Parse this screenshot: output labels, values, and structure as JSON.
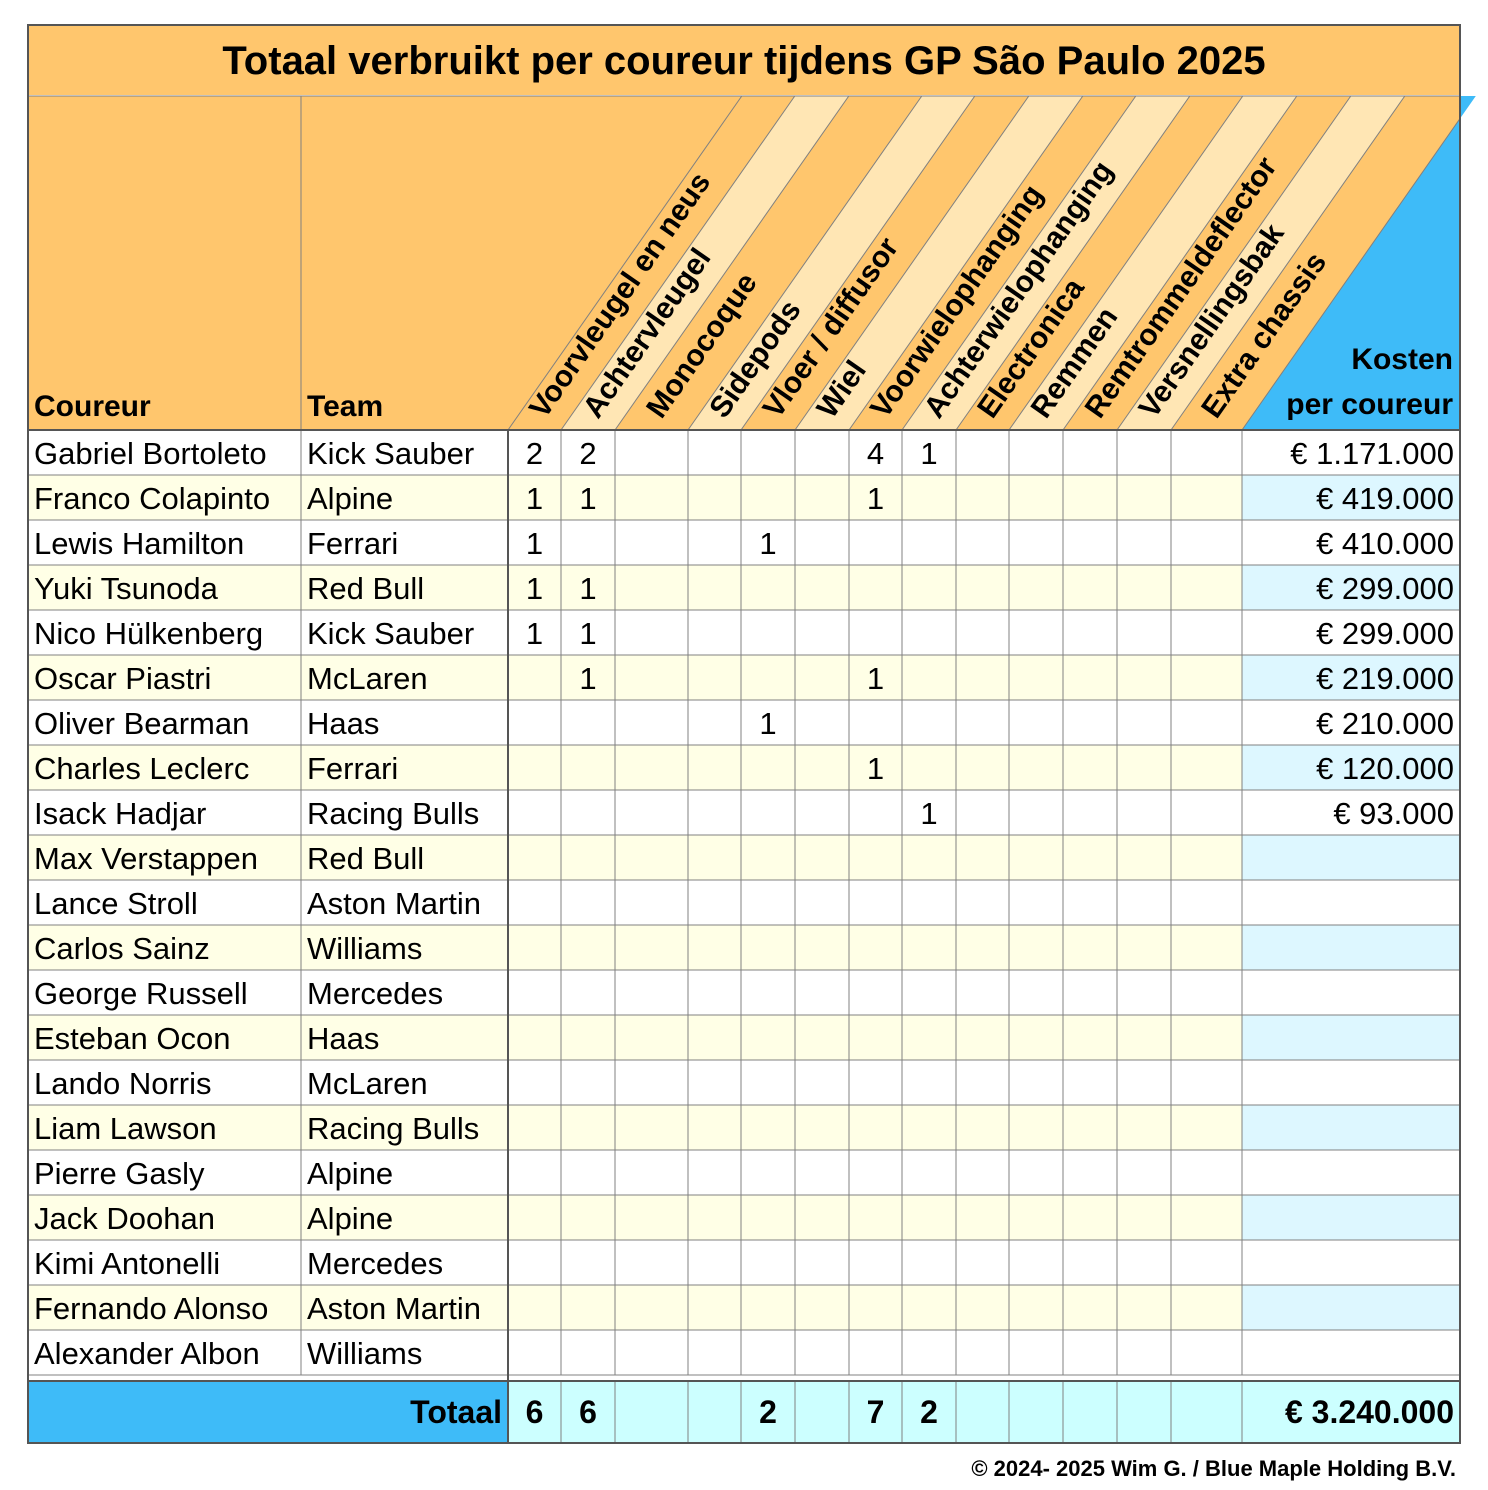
{
  "title": "Totaal verbruikt per coureur tijdens GP São Paulo 2025",
  "headers": {
    "driver": "Coureur",
    "team": "Team",
    "cost_line1": "Kosten",
    "cost_line2": "per coureur"
  },
  "components": [
    "Voorvleugel en neus",
    "Achtervleugel",
    "Monocoque",
    "Sidepods",
    "Vloer / diffusor",
    "Wiel",
    "Voorwielophanging",
    "Achterwielophanging",
    "Electronica",
    "Remmen",
    "Remtrommeldeflector",
    "Versnellingsbak",
    "Extra chassis"
  ],
  "rows": [
    {
      "driver": "Gabriel Bortoleto",
      "team": "Kick Sauber",
      "values": [
        "2",
        "2",
        "",
        "",
        "",
        "",
        "4",
        "1",
        "",
        "",
        "",
        "",
        ""
      ],
      "cost": "€ 1.171.000"
    },
    {
      "driver": "Franco Colapinto",
      "team": "Alpine",
      "values": [
        "1",
        "1",
        "",
        "",
        "",
        "",
        "1",
        "",
        "",
        "",
        "",
        "",
        ""
      ],
      "cost": "€ 419.000"
    },
    {
      "driver": "Lewis Hamilton",
      "team": "Ferrari",
      "values": [
        "1",
        "",
        "",
        "",
        "1",
        "",
        "",
        "",
        "",
        "",
        "",
        "",
        ""
      ],
      "cost": "€ 410.000"
    },
    {
      "driver": "Yuki Tsunoda",
      "team": "Red Bull",
      "values": [
        "1",
        "1",
        "",
        "",
        "",
        "",
        "",
        "",
        "",
        "",
        "",
        "",
        ""
      ],
      "cost": "€ 299.000"
    },
    {
      "driver": "Nico Hülkenberg",
      "team": "Kick Sauber",
      "values": [
        "1",
        "1",
        "",
        "",
        "",
        "",
        "",
        "",
        "",
        "",
        "",
        "",
        ""
      ],
      "cost": "€ 299.000"
    },
    {
      "driver": "Oscar Piastri",
      "team": "McLaren",
      "values": [
        "",
        "1",
        "",
        "",
        "",
        "",
        "1",
        "",
        "",
        "",
        "",
        "",
        ""
      ],
      "cost": "€ 219.000"
    },
    {
      "driver": "Oliver Bearman",
      "team": "Haas",
      "values": [
        "",
        "",
        "",
        "",
        "1",
        "",
        "",
        "",
        "",
        "",
        "",
        "",
        ""
      ],
      "cost": "€ 210.000"
    },
    {
      "driver": "Charles Leclerc",
      "team": "Ferrari",
      "values": [
        "",
        "",
        "",
        "",
        "",
        "",
        "1",
        "",
        "",
        "",
        "",
        "",
        ""
      ],
      "cost": "€ 120.000"
    },
    {
      "driver": "Isack Hadjar",
      "team": "Racing Bulls",
      "values": [
        "",
        "",
        "",
        "",
        "",
        "",
        "",
        "1",
        "",
        "",
        "",
        "",
        ""
      ],
      "cost": "€ 93.000"
    },
    {
      "driver": "Max Verstappen",
      "team": "Red Bull",
      "values": [
        "",
        "",
        "",
        "",
        "",
        "",
        "",
        "",
        "",
        "",
        "",
        "",
        ""
      ],
      "cost": ""
    },
    {
      "driver": "Lance Stroll",
      "team": "Aston Martin",
      "values": [
        "",
        "",
        "",
        "",
        "",
        "",
        "",
        "",
        "",
        "",
        "",
        "",
        ""
      ],
      "cost": ""
    },
    {
      "driver": "Carlos Sainz",
      "team": "Williams",
      "values": [
        "",
        "",
        "",
        "",
        "",
        "",
        "",
        "",
        "",
        "",
        "",
        "",
        ""
      ],
      "cost": ""
    },
    {
      "driver": "George Russell",
      "team": "Mercedes",
      "values": [
        "",
        "",
        "",
        "",
        "",
        "",
        "",
        "",
        "",
        "",
        "",
        "",
        ""
      ],
      "cost": ""
    },
    {
      "driver": "Esteban Ocon",
      "team": "Haas",
      "values": [
        "",
        "",
        "",
        "",
        "",
        "",
        "",
        "",
        "",
        "",
        "",
        "",
        ""
      ],
      "cost": ""
    },
    {
      "driver": "Lando Norris",
      "team": "McLaren",
      "values": [
        "",
        "",
        "",
        "",
        "",
        "",
        "",
        "",
        "",
        "",
        "",
        "",
        ""
      ],
      "cost": ""
    },
    {
      "driver": "Liam Lawson",
      "team": "Racing Bulls",
      "values": [
        "",
        "",
        "",
        "",
        "",
        "",
        "",
        "",
        "",
        "",
        "",
        "",
        ""
      ],
      "cost": ""
    },
    {
      "driver": "Pierre Gasly",
      "team": "Alpine",
      "values": [
        "",
        "",
        "",
        "",
        "",
        "",
        "",
        "",
        "",
        "",
        "",
        "",
        ""
      ],
      "cost": ""
    },
    {
      "driver": "Jack Doohan",
      "team": "Alpine",
      "values": [
        "",
        "",
        "",
        "",
        "",
        "",
        "",
        "",
        "",
        "",
        "",
        "",
        ""
      ],
      "cost": ""
    },
    {
      "driver": "Kimi Antonelli",
      "team": "Mercedes",
      "values": [
        "",
        "",
        "",
        "",
        "",
        "",
        "",
        "",
        "",
        "",
        "",
        "",
        ""
      ],
      "cost": ""
    },
    {
      "driver": "Fernando Alonso",
      "team": "Aston Martin",
      "values": [
        "",
        "",
        "",
        "",
        "",
        "",
        "",
        "",
        "",
        "",
        "",
        "",
        ""
      ],
      "cost": ""
    },
    {
      "driver": "Alexander Albon",
      "team": "Williams",
      "values": [
        "",
        "",
        "",
        "",
        "",
        "",
        "",
        "",
        "",
        "",
        "",
        "",
        ""
      ],
      "cost": ""
    }
  ],
  "total": {
    "label": "Totaal",
    "values": [
      "6",
      "6",
      "",
      "",
      "2",
      "",
      "7",
      "2",
      "",
      "",
      "",
      "",
      ""
    ],
    "cost": "€ 3.240.000"
  },
  "copyright": "© 2024- 2025 Wim G. / Blue Maple Holding B.V.",
  "colors": {
    "header_orange": "#FFC66D",
    "header_light": "#FFE6B4",
    "row_tint": "#FFFFE6",
    "cost_tint": "#DDF7FF",
    "blue": "#3EBBF8",
    "total_cell": "#CCFFFF",
    "grid": "#808080"
  }
}
